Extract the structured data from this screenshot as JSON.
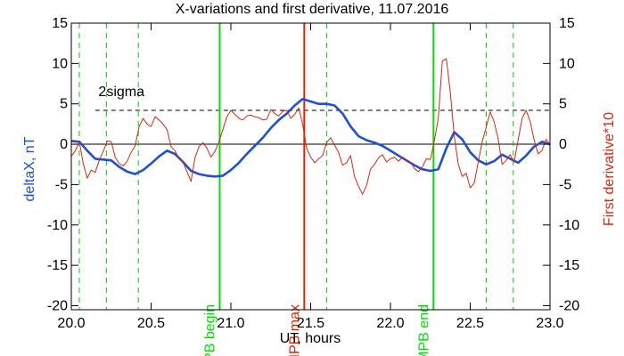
{
  "chart_data": {
    "type": "line",
    "title": "X-variations and first derivative, 11.07.2016",
    "xlabel": "UT, hours",
    "ylabel_left": "deltaX, nT",
    "ylabel_right": "First derivative*10",
    "xlim": [
      20.0,
      23.0
    ],
    "ylim": [
      -20.5,
      15
    ],
    "x_ticks": [
      20.0,
      20.5,
      21.0,
      21.5,
      22.0,
      22.5,
      23.0
    ],
    "x_tick_labels": [
      "20.0",
      "20.5",
      "21.0",
      "21.5",
      "22.0",
      "22.5",
      "23.0"
    ],
    "y_ticks": [
      15,
      10,
      5,
      0,
      -5,
      -10,
      -15,
      -20
    ],
    "y_tick_labels": [
      "15",
      "10",
      "5",
      "0",
      "-5",
      "-10",
      "-15",
      "-20"
    ],
    "grid": false,
    "colors": {
      "deltaX": "#1f4fd8",
      "derivative": "#d42a10",
      "mpb_boundary": "#00e000",
      "mpb_max": "#dd2200",
      "dashed_green": "#00cc00",
      "axes": "#000000"
    },
    "series": [
      {
        "role": "deltaX",
        "x": [
          20.0,
          20.05,
          20.1,
          20.15,
          20.2,
          20.25,
          20.3,
          20.35,
          20.4,
          20.45,
          20.5,
          20.55,
          20.6,
          20.65,
          20.7,
          20.75,
          20.8,
          20.85,
          20.9,
          20.95,
          21.0,
          21.05,
          21.1,
          21.15,
          21.2,
          21.25,
          21.3,
          21.35,
          21.4,
          21.45,
          21.5,
          21.55,
          21.6,
          21.65,
          21.7,
          21.75,
          21.8,
          21.85,
          21.9,
          21.95,
          22.0,
          22.05,
          22.1,
          22.15,
          22.2,
          22.25,
          22.3,
          22.35,
          22.4,
          22.45,
          22.5,
          22.55,
          22.6,
          22.65,
          22.7,
          22.75,
          22.8,
          22.85,
          22.9,
          22.95,
          23.0
        ],
        "values": [
          0.4,
          0.3,
          -0.8,
          -1.8,
          -1.9,
          -2.0,
          -2.8,
          -3.4,
          -3.7,
          -3.2,
          -2.4,
          -1.5,
          -0.8,
          -1.2,
          -2.2,
          -3.3,
          -3.7,
          -3.9,
          -4.0,
          -3.9,
          -3.2,
          -2.3,
          -1.2,
          -0.2,
          0.8,
          2.0,
          3.0,
          3.8,
          4.8,
          5.6,
          5.3,
          5.0,
          5.0,
          4.8,
          3.8,
          2.2,
          1.0,
          0.5,
          0.2,
          -0.2,
          -0.8,
          -1.4,
          -2.0,
          -2.6,
          -3.1,
          -3.3,
          -3.1,
          -0.5,
          1.5,
          0.6,
          -1.0,
          -2.0,
          -2.5,
          -2.1,
          -1.3,
          -1.8,
          -2.3,
          -1.4,
          -0.3,
          0.3,
          0.0
        ]
      },
      {
        "role": "derivative",
        "x": [
          20.0,
          20.025,
          20.05,
          20.075,
          20.1,
          20.125,
          20.15,
          20.175,
          20.2,
          20.225,
          20.25,
          20.275,
          20.3,
          20.325,
          20.35,
          20.375,
          20.4,
          20.425,
          20.45,
          20.475,
          20.5,
          20.525,
          20.55,
          20.575,
          20.6,
          20.625,
          20.65,
          20.675,
          20.7,
          20.725,
          20.75,
          20.775,
          20.8,
          20.825,
          20.85,
          20.875,
          20.9,
          20.925,
          20.95,
          20.975,
          21.0,
          21.025,
          21.05,
          21.075,
          21.1,
          21.125,
          21.15,
          21.175,
          21.2,
          21.225,
          21.25,
          21.275,
          21.3,
          21.325,
          21.35,
          21.375,
          21.4,
          21.425,
          21.45,
          21.475,
          21.5,
          21.525,
          21.55,
          21.575,
          21.6,
          21.625,
          21.65,
          21.675,
          21.7,
          21.725,
          21.75,
          21.775,
          21.8,
          21.825,
          21.85,
          21.875,
          21.9,
          21.925,
          21.95,
          21.975,
          22.0,
          22.025,
          22.05,
          22.075,
          22.1,
          22.125,
          22.15,
          22.175,
          22.2,
          22.225,
          22.25,
          22.275,
          22.3,
          22.325,
          22.35,
          22.375,
          22.4,
          22.425,
          22.45,
          22.475,
          22.5,
          22.525,
          22.55,
          22.575,
          22.6,
          22.625,
          22.65,
          22.675,
          22.7,
          22.725,
          22.75,
          22.775,
          22.8,
          22.825,
          22.85,
          22.875,
          22.9,
          22.925,
          22.95,
          22.975,
          23.0
        ],
        "values": [
          -1.5,
          -0.8,
          0.3,
          -2.4,
          -4.2,
          -3.2,
          -3.5,
          -2.0,
          -0.9,
          0.4,
          0.3,
          -1.6,
          -2.4,
          -2.7,
          -2.1,
          -1.0,
          -0.2,
          2.2,
          3.2,
          2.5,
          2.2,
          3.4,
          3.0,
          2.5,
          1.8,
          -0.3,
          -0.8,
          -1.8,
          -2.2,
          -3.4,
          -4.6,
          -1.7,
          -0.3,
          0.2,
          -0.5,
          -1.6,
          -0.9,
          0.3,
          1.8,
          3.4,
          4.2,
          3.7,
          3.2,
          3.0,
          3.5,
          3.6,
          3.4,
          3.3,
          3.0,
          3.1,
          4.3,
          3.8,
          3.5,
          4.1,
          4.2,
          3.2,
          3.7,
          4.5,
          2.5,
          -0.5,
          -1.6,
          -2.3,
          -1.8,
          -1.4,
          0.2,
          0.8,
          -0.1,
          -1.0,
          -2.6,
          -2.3,
          -1.4,
          -4.0,
          -5.2,
          -6.2,
          -5.1,
          -3.1,
          -2.5,
          -1.7,
          -1.3,
          -2.2,
          -1.8,
          -1.6,
          -2.1,
          -1.6,
          -1.9,
          -2.2,
          -3.0,
          -3.4,
          -2.8,
          -1.8,
          -1.9,
          0.4,
          3.2,
          10.3,
          10.6,
          6.5,
          1.0,
          -2.5,
          -4.0,
          -3.6,
          -5.4,
          -4.8,
          -2.2,
          0.3,
          2.1,
          4.0,
          2.8,
          0.7,
          -2.5,
          -2.0,
          -1.3,
          -2.2,
          0.5,
          3.2,
          4.2,
          2.9,
          0.6,
          -1.2,
          -0.8,
          0.6,
          0.0
        ]
      }
    ],
    "sigma_level": 4.2,
    "zero_level": 0,
    "dashed_markers_x": [
      20.05,
      20.22,
      20.42,
      21.6,
      22.6,
      22.77
    ],
    "markers": [
      {
        "x": 20.93,
        "label": "MPB begin",
        "role": "mpb_boundary"
      },
      {
        "x": 21.46,
        "label": "MPB max",
        "role": "mpb_max"
      },
      {
        "x": 22.27,
        "label": "MPB end",
        "role": "mpb_boundary"
      }
    ],
    "annotations": [
      {
        "text": "2sigma",
        "x": 20.17,
        "y": 6.5
      }
    ]
  }
}
